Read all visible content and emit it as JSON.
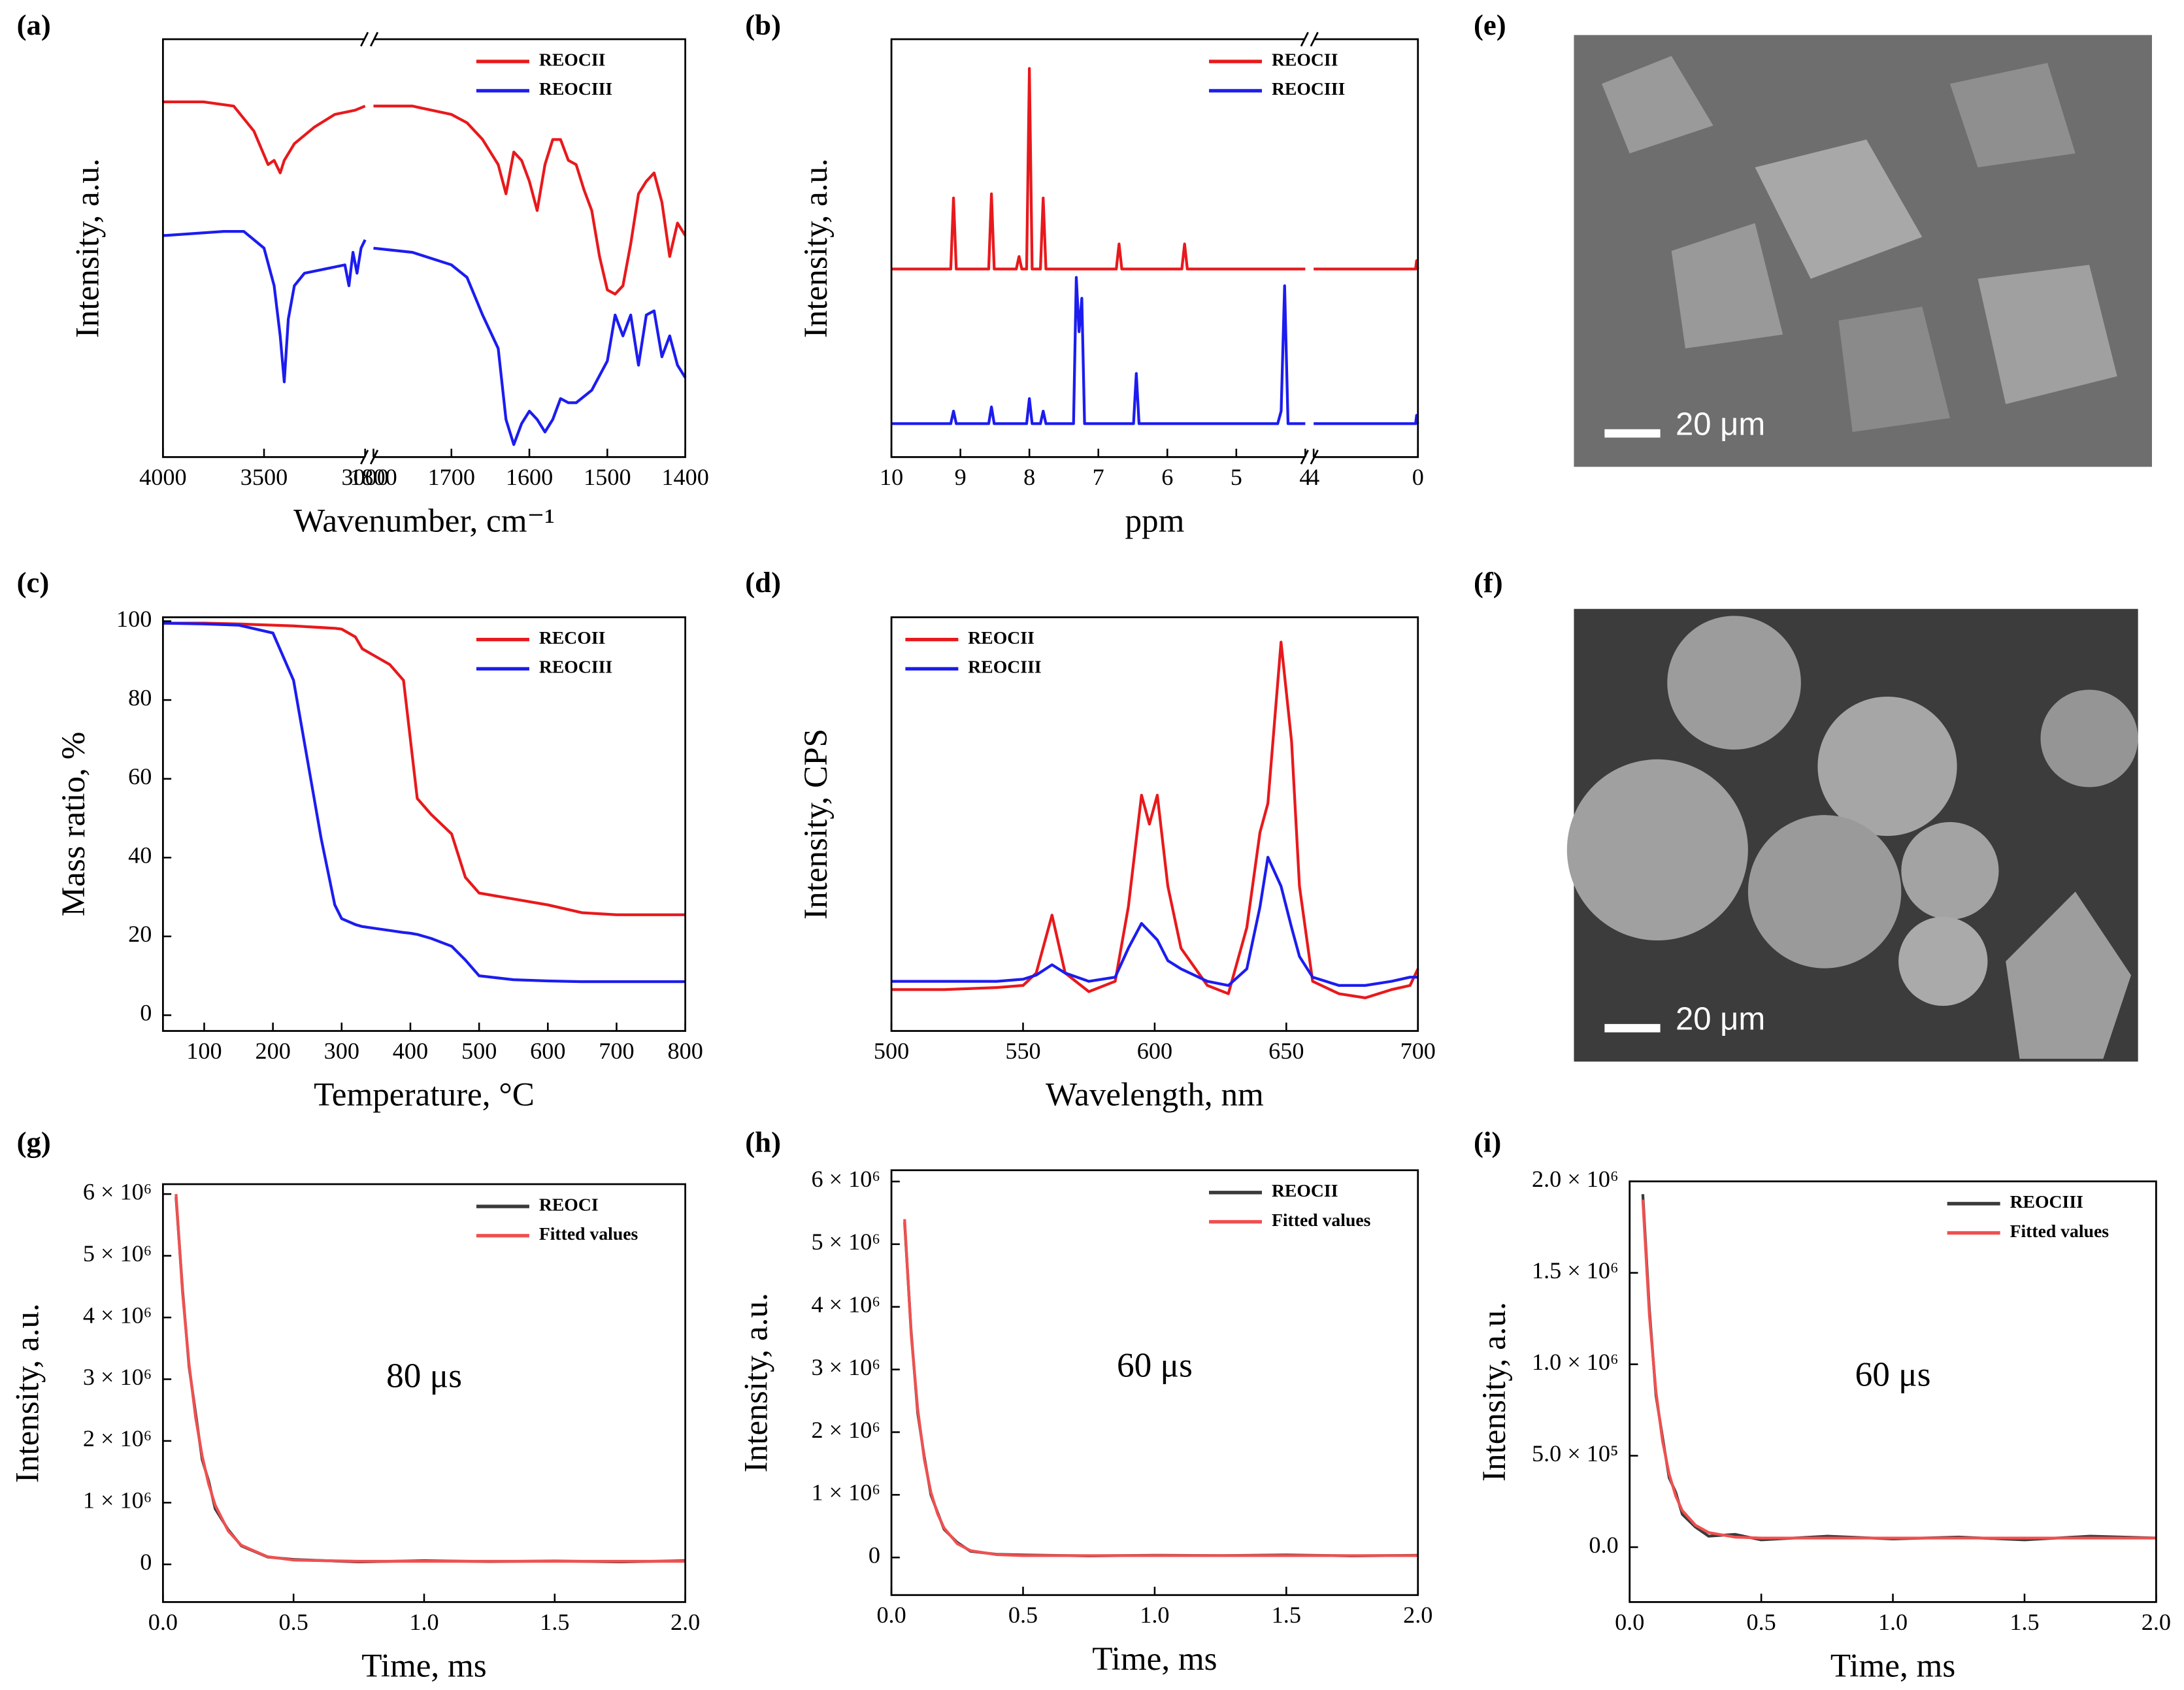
{
  "chart_data": [
    {
      "type": "line",
      "label": "(a)",
      "xlabel": "Wavenumber, cm⁻¹",
      "ylabel": "Intensity, a.u.",
      "xlim": [
        [
          4000,
          3000
        ],
        [
          1800,
          1400
        ]
      ],
      "xticks": [
        [
          4000,
          3500,
          3000
        ],
        [
          1800,
          1700,
          1600,
          1500,
          1400
        ]
      ],
      "ylim": [
        0,
        100
      ],
      "legend": "upper right",
      "series": [
        {
          "name": "REOCII",
          "color": "#e8191c",
          "x": [
            [
              4000,
              3800,
              3650,
              3550,
              3480,
              3450,
              3420,
              3400,
              3350,
              3250,
              3150,
              3050,
              3000
            ],
            [
              1800,
              1750,
              1700,
              1680,
              1660,
              1640,
              1630,
              1620,
              1610,
              1600,
              1590,
              1580,
              1570,
              1560,
              1550,
              1540,
              1530,
              1520,
              1510,
              1500,
              1490,
              1480,
              1470,
              1460,
              1450,
              1440,
              1430,
              1420,
              1410,
              1400
            ]
          ],
          "values": [
            [
              85,
              85,
              84,
              78,
              70,
              71,
              68,
              71,
              75,
              79,
              82,
              83,
              84
            ],
            [
              84,
              84,
              82,
              80,
              76,
              70,
              63,
              73,
              71,
              66,
              59,
              70,
              76,
              76,
              71,
              70,
              64,
              59,
              48,
              40,
              39,
              41,
              51,
              63,
              66,
              68,
              61,
              48,
              56,
              53
            ]
          ]
        },
        {
          "name": "REOCIII",
          "color": "#1c1cf0",
          "x": [
            [
              4000,
              3700,
              3600,
              3500,
              3450,
              3420,
              3400,
              3380,
              3350,
              3300,
              3100,
              3080,
              3060,
              3040,
              3020,
              3000
            ],
            [
              1800,
              1750,
              1700,
              1680,
              1660,
              1640,
              1630,
              1620,
              1610,
              1600,
              1590,
              1580,
              1570,
              1560,
              1550,
              1540,
              1520,
              1500,
              1490,
              1480,
              1470,
              1460,
              1450,
              1440,
              1430,
              1420,
              1410,
              1400
            ]
          ],
          "values": [
            [
              53,
              54,
              54,
              50,
              41,
              29,
              18,
              33,
              41,
              44,
              46,
              41,
              49,
              44,
              50,
              52
            ],
            [
              50,
              49,
              46,
              43,
              34,
              26,
              9,
              3,
              8,
              11,
              9,
              6,
              9,
              14,
              13,
              13,
              16,
              23,
              34,
              29,
              34,
              22,
              34,
              35,
              24,
              29,
              22,
              19
            ]
          ]
        }
      ]
    },
    {
      "type": "line",
      "label": "(b)",
      "xlabel": "ppm",
      "ylabel": "Intensity, a.u.",
      "xlim": [
        [
          10,
          4
        ],
        [
          4,
          0
        ]
      ],
      "xticks": [
        [
          10,
          9,
          8,
          7,
          6,
          5,
          4
        ],
        [
          4,
          0
        ]
      ],
      "ylim": [
        0,
        100
      ],
      "legend": "upper right",
      "series": [
        {
          "name": "REOCII",
          "color": "#e8191c",
          "x": [
            [
              10,
              9.14,
              9.1,
              9.06,
              8.59,
              8.55,
              8.51,
              8.19,
              8.15,
              8.11,
              8.04,
              8.0,
              7.96,
              7.84,
              7.8,
              7.76,
              6.74,
              6.7,
              6.66,
              5.79,
              5.75,
              5.71,
              4
            ],
            [
              4,
              0.09,
              0.05,
              0.01,
              0
            ]
          ],
          "values": [
            [
              45,
              45,
              62,
              45,
              45,
              63,
              45,
              45,
              48,
              45,
              45,
              93,
              45,
              45,
              62,
              45,
              45,
              51,
              45,
              45,
              51,
              45,
              45
            ],
            [
              45,
              45,
              47,
              45,
              45
            ]
          ]
        },
        {
          "name": "REOCIII",
          "color": "#1c1cf0",
          "x": [
            [
              10,
              9.14,
              9.1,
              9.06,
              8.59,
              8.55,
              8.51,
              8.04,
              8.0,
              7.96,
              7.84,
              7.8,
              7.76,
              7.36,
              7.32,
              7.28,
              7.24,
              7.2,
              6.49,
              6.45,
              6.41,
              4.4,
              4.35,
              4.3,
              4.25,
              4
            ],
            [
              4,
              0.09,
              0.05,
              0.01,
              0
            ]
          ],
          "values": [
            [
              8,
              8,
              11,
              8,
              8,
              12,
              8,
              8,
              14,
              8,
              8,
              11,
              8,
              8,
              43,
              30,
              38,
              8,
              8,
              20,
              8,
              8,
              11,
              41,
              8,
              8
            ],
            [
              8,
              8,
              10,
              8,
              8
            ]
          ]
        }
      ]
    },
    {
      "type": "line",
      "label": "(c)",
      "xlabel": "Temperature, °C",
      "ylabel": "Mass ratio, %",
      "xlim": [
        40,
        800
      ],
      "xticks": [
        100,
        200,
        300,
        400,
        500,
        600,
        700,
        800
      ],
      "ylim": [
        -4,
        101
      ],
      "yticks": [
        0,
        20,
        40,
        60,
        80,
        100
      ],
      "legend": "upper right",
      "x": [
        40,
        100,
        150,
        200,
        230,
        250,
        270,
        290,
        300,
        320,
        330,
        350,
        370,
        390,
        400,
        410,
        430,
        460,
        480,
        500,
        550,
        600,
        650,
        700,
        800
      ],
      "series": [
        {
          "name": "RECOII",
          "color": "#e8191c",
          "values": [
            99.5,
            99.5,
            99.3,
            99,
            98.8,
            98.6,
            98.4,
            98.2,
            98,
            96,
            93,
            91,
            89,
            85,
            70,
            55,
            51,
            46,
            35,
            31,
            29.5,
            28,
            26,
            25.5,
            25.5
          ]
        },
        {
          "name": "REOCIII",
          "color": "#1c1cf0",
          "values": [
            99.5,
            99.3,
            99,
            97,
            85,
            65,
            45,
            28,
            24.5,
            23,
            22.5,
            22,
            21.5,
            21,
            20.8,
            20.5,
            19.5,
            17.5,
            14,
            10,
            9,
            8.7,
            8.5,
            8.5,
            8.5
          ]
        }
      ]
    },
    {
      "type": "line",
      "label": "(d)",
      "xlabel": "Wavelength, nm",
      "ylabel": "Intensity, CPS",
      "xlim": [
        500,
        700
      ],
      "xticks": [
        500,
        550,
        600,
        650,
        700
      ],
      "ylim": [
        0,
        100
      ],
      "legend": "upper left",
      "x": [
        500,
        520,
        540,
        550,
        555,
        561,
        566,
        575,
        585,
        590,
        595,
        598,
        601,
        605,
        610,
        620,
        628,
        635,
        640,
        643,
        648,
        652,
        655,
        660,
        670,
        680,
        690,
        697,
        700
      ],
      "series": [
        {
          "name": "REOCII",
          "color": "#e8191c",
          "values": [
            10,
            10,
            10.5,
            11,
            14,
            28,
            14,
            9.5,
            12,
            30,
            57,
            50,
            57,
            35,
            20,
            11,
            9,
            25,
            48,
            55,
            94,
            70,
            35,
            12,
            9,
            8,
            10,
            11,
            15
          ]
        },
        {
          "name": "REOCIII",
          "color": "#1c1cf0",
          "values": [
            12,
            12,
            12,
            12.5,
            13.5,
            16,
            14,
            12,
            13,
            20,
            26,
            24,
            22,
            17,
            15,
            12,
            11,
            15,
            30,
            42,
            35,
            25,
            18,
            13,
            11,
            11,
            12,
            13,
            13
          ]
        }
      ]
    },
    {
      "type": "line",
      "label": "(g)",
      "xlabel": "Time, ms",
      "ylabel": "Intensity, a.u.",
      "annotation": "80  μs",
      "xlim": [
        0,
        2
      ],
      "xticks": [
        {
          "value": 0,
          "label": "0.0"
        },
        0.5,
        {
          "value": 1,
          "label": "1.0"
        },
        1.5,
        {
          "value": 2,
          "label": "2.0"
        }
      ],
      "ylim": [
        -610000,
        6160000
      ],
      "yticks": [
        0,
        {
          "value": 1000000,
          "label": "1 × 10⁶"
        },
        {
          "value": 2000000,
          "label": "2 × 10⁶"
        },
        {
          "value": 3000000,
          "label": "3 × 10⁶"
        },
        {
          "value": 4000000,
          "label": "4 × 10⁶"
        },
        {
          "value": 5000000,
          "label": "5 × 10⁶"
        },
        {
          "value": 6000000,
          "label": "6 × 10⁶"
        }
      ],
      "legend": "upper right",
      "x": [
        0.05,
        0.075,
        0.1,
        0.125,
        0.15,
        0.175,
        0.2,
        0.25,
        0.3,
        0.4,
        0.5,
        0.75,
        1.0,
        1.25,
        1.5,
        1.75,
        2.0
      ],
      "series": [
        {
          "name": "REOCI",
          "color": "#3a3a3a",
          "values": [
            5950000,
            4450000,
            3200000,
            2450000,
            1700000,
            1350000,
            900000,
            560000,
            300000,
            120000,
            80000,
            40000,
            60000,
            45000,
            55000,
            40000,
            60000
          ]
        },
        {
          "name": "Fitted values",
          "color": "#f05050",
          "values": [
            6000000,
            4400000,
            3240000,
            2380000,
            1760000,
            1300000,
            960000,
            540000,
            310000,
            125000,
            70000,
            50000,
            50000,
            50000,
            50000,
            50000,
            50000
          ]
        }
      ]
    },
    {
      "type": "line",
      "label": "(h)",
      "xlabel": "Time, ms",
      "ylabel": "Intensity, a.u.",
      "annotation": "60 μs",
      "xlim": [
        0,
        2
      ],
      "xticks": [
        {
          "value": 0,
          "label": "0.0"
        },
        0.5,
        {
          "value": 1,
          "label": "1.0"
        },
        1.5,
        {
          "value": 2,
          "label": "2.0"
        }
      ],
      "ylim": [
        -600000,
        6180000
      ],
      "yticks": [
        0,
        {
          "value": 1000000,
          "label": "1 × 10⁶"
        },
        {
          "value": 2000000,
          "label": "2 × 10⁶"
        },
        {
          "value": 3000000,
          "label": "3 × 10⁶"
        },
        {
          "value": 4000000,
          "label": "4 × 10⁶"
        },
        {
          "value": 5000000,
          "label": "5 × 10⁶"
        },
        {
          "value": 6000000,
          "label": "6 × 10⁶"
        }
      ],
      "legend": "upper right",
      "x": [
        0.05,
        0.075,
        0.1,
        0.125,
        0.15,
        0.175,
        0.2,
        0.25,
        0.3,
        0.4,
        0.5,
        0.75,
        1.0,
        1.25,
        1.5,
        1.75,
        2.0
      ],
      "series": [
        {
          "name": "REOCII",
          "color": "#3a3a3a",
          "values": [
            5350000,
            3600000,
            2300000,
            1600000,
            1000000,
            720000,
            450000,
            240000,
            100000,
            50000,
            40000,
            25000,
            35000,
            30000,
            40000,
            25000,
            35000
          ]
        },
        {
          "name": "Fitted values",
          "color": "#f05050",
          "values": [
            5400000,
            3560000,
            2360000,
            1560000,
            1040000,
            700000,
            470000,
            220000,
            110000,
            45000,
            30000,
            30000,
            30000,
            30000,
            30000,
            30000,
            30000
          ]
        }
      ]
    },
    {
      "type": "line",
      "label": "(i)",
      "xlabel": "Time, ms",
      "ylabel": "Intensity, a.u.",
      "annotation": "60 μs",
      "xlim": [
        0,
        2
      ],
      "xticks": [
        {
          "value": 0,
          "label": "0.0"
        },
        0.5,
        {
          "value": 1,
          "label": "1.0"
        },
        1.5,
        {
          "value": 2,
          "label": "2.0"
        }
      ],
      "ylim": [
        -300000,
        2000000
      ],
      "yticks": [
        {
          "value": 0,
          "label": "0.0"
        },
        {
          "value": 500000,
          "label": "5.0 × 10⁵"
        },
        {
          "value": 1000000,
          "label": "1.0 × 10⁶"
        },
        {
          "value": 1500000,
          "label": "1.5 × 10⁶"
        },
        {
          "value": 2000000,
          "label": "2.0 × 10⁶"
        }
      ],
      "legend": "upper right",
      "x": [
        0.05,
        0.075,
        0.1,
        0.125,
        0.15,
        0.175,
        0.2,
        0.25,
        0.3,
        0.4,
        0.5,
        0.75,
        1.0,
        1.25,
        1.5,
        1.75,
        2.0
      ],
      "series": [
        {
          "name": "REOCIII",
          "color": "#3a3a3a",
          "values": [
            1930000,
            1300000,
            830000,
            600000,
            380000,
            300000,
            180000,
            110000,
            60000,
            70000,
            40000,
            60000,
            45000,
            55000,
            40000,
            60000,
            50000
          ]
        },
        {
          "name": "Fitted values",
          "color": "#f05050",
          "values": [
            1900000,
            1270000,
            850000,
            580000,
            400000,
            280000,
            200000,
            120000,
            80000,
            55000,
            50000,
            50000,
            50000,
            50000,
            50000,
            50000,
            50000
          ]
        }
      ]
    }
  ],
  "images": [
    {
      "label": "(e)",
      "scale_bar": "20 μm"
    },
    {
      "label": "(f)",
      "scale_bar": "20 μm"
    }
  ]
}
